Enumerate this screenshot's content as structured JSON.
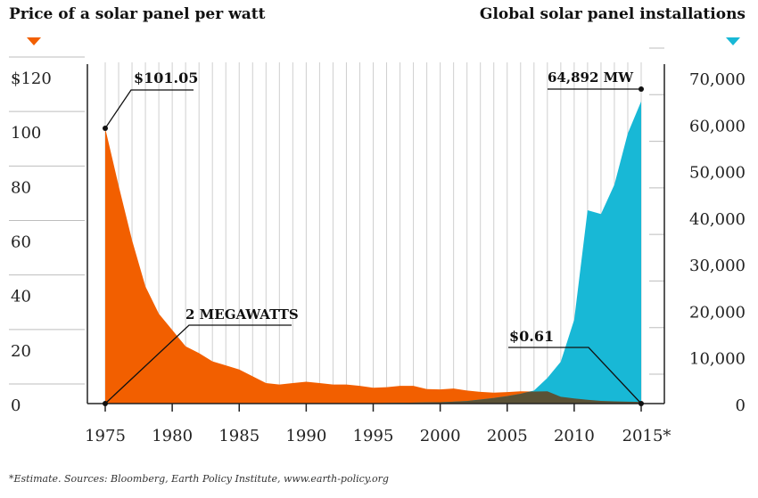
{
  "titles": {
    "left": "Price of a solar panel per watt",
    "right": "Global solar panel installations"
  },
  "footnote": "*Estimate. Sources: Bloomberg, Earth Policy Institute, www.earth-policy.org",
  "colors": {
    "price": "#f25f00",
    "installations": "#18b8d6",
    "overlap": "#5a5236",
    "grid": "#cfcfcf",
    "axis": "#222222"
  },
  "chart_data": {
    "type": "area",
    "x_label_ticks": [
      "1975",
      "1980",
      "1985",
      "1990",
      "1995",
      "2000",
      "2005",
      "2010",
      "2015*"
    ],
    "left_axis": {
      "ticks": [
        0,
        20,
        40,
        60,
        80,
        100,
        120
      ],
      "tick_labels": [
        "0",
        "20",
        "40",
        "60",
        "80",
        "100",
        "$120"
      ],
      "ylim": [
        0,
        120
      ]
    },
    "right_axis": {
      "ticks": [
        0,
        10000,
        20000,
        30000,
        40000,
        50000,
        60000,
        70000
      ],
      "tick_labels": [
        "0",
        "10,000",
        "20,000",
        "30,000",
        "40,000",
        "50,000",
        "60,000",
        "70,000"
      ],
      "ylim": [
        0,
        70000
      ]
    },
    "xlim": [
      1975,
      2015
    ],
    "series": [
      {
        "axis": "left",
        "x": [
          1975,
          1976,
          1977,
          1978,
          1979,
          1980,
          1981,
          1982,
          1983,
          1984,
          1985,
          1986,
          1987,
          1988,
          1989,
          1990,
          1991,
          1992,
          1993,
          1994,
          1995,
          1996,
          1997,
          1998,
          1999,
          2000,
          2001,
          2002,
          2003,
          2004,
          2005,
          2006,
          2007,
          2008,
          2009,
          2010,
          2011,
          2012,
          2013,
          2014,
          2015
        ],
        "values": [
          101.05,
          80,
          60,
          43,
          33,
          27,
          21,
          18.5,
          15.5,
          14,
          12.5,
          10,
          7.5,
          7,
          7.5,
          8,
          7.5,
          7,
          7,
          6.5,
          5.8,
          6,
          6.5,
          6.5,
          5.3,
          5.2,
          5.5,
          4.8,
          4.3,
          4,
          4.2,
          4.5,
          4.4,
          4.5,
          2.5,
          1.9,
          1.4,
          1,
          0.8,
          0.7,
          0.61
        ]
      },
      {
        "axis": "right",
        "x": [
          1975,
          1980,
          1985,
          1990,
          1995,
          2000,
          2002,
          2004,
          2005,
          2006,
          2007,
          2008,
          2009,
          2010,
          2011,
          2012,
          2013,
          2014,
          2015
        ],
        "values": [
          2,
          8,
          30,
          50,
          80,
          280,
          550,
          1200,
          1600,
          2100,
          2800,
          5500,
          9000,
          18000,
          41500,
          40700,
          47000,
          58000,
          64892
        ]
      }
    ],
    "annotations": {
      "price_start": "$101.05",
      "price_end": "$0.61",
      "install_start": "2 MEGAWATTS",
      "install_end": "64,892 MW"
    },
    "grid": true
  }
}
